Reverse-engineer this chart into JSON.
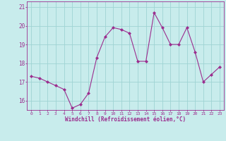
{
  "x": [
    0,
    1,
    2,
    3,
    4,
    5,
    6,
    7,
    8,
    9,
    10,
    11,
    12,
    13,
    14,
    15,
    16,
    17,
    18,
    19,
    20,
    21,
    22,
    23
  ],
  "y": [
    17.3,
    17.2,
    17.0,
    16.8,
    16.6,
    15.6,
    15.8,
    16.4,
    18.3,
    19.4,
    19.9,
    19.8,
    19.6,
    18.1,
    18.1,
    20.7,
    19.9,
    19.0,
    19.0,
    19.9,
    18.6,
    17.0,
    17.4,
    17.8
  ],
  "line_color": "#9b2d8e",
  "marker": "D",
  "marker_size": 2.0,
  "bg_color": "#c8ecec",
  "grid_color": "#9fd4d4",
  "xlabel": "Windchill (Refroidissement éolien,°C)",
  "xlabel_color": "#9b2d8e",
  "tick_color": "#9b2d8e",
  "ylim": [
    15.5,
    21.3
  ],
  "yticks": [
    16,
    17,
    18,
    19,
    20,
    21
  ],
  "xticks": [
    0,
    1,
    2,
    3,
    4,
    5,
    6,
    7,
    8,
    9,
    10,
    11,
    12,
    13,
    14,
    15,
    16,
    17,
    18,
    19,
    20,
    21,
    22,
    23
  ]
}
